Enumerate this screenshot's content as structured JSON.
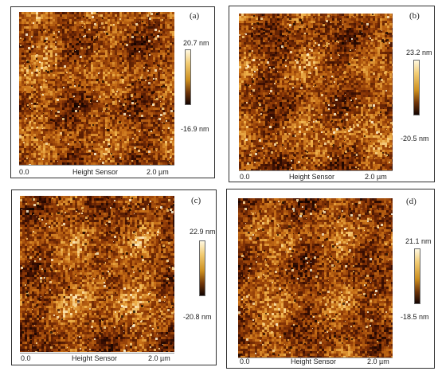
{
  "panels": [
    {
      "label": "(a)",
      "scale_max": "20.7 nm",
      "scale_min": "-16.9 nm",
      "axis_start": "0.0",
      "axis_title": "Height Sensor",
      "axis_end": "2.0 µm"
    },
    {
      "label": "(b)",
      "scale_max": "23.2 nm",
      "scale_min": "-20.5 nm",
      "axis_start": "0.0",
      "axis_title": "Height Sensor",
      "axis_end": "2.0 µm"
    },
    {
      "label": "(c)",
      "scale_max": "22.9 nm",
      "scale_min": "-20.8 nm",
      "axis_start": "0.0",
      "axis_title": "Height Sensor",
      "axis_end": "2.0 µm"
    },
    {
      "label": "(d)",
      "scale_max": "21.1 nm",
      "scale_min": "-18.5 nm",
      "axis_start": "0.0",
      "axis_title": "Height Sensor",
      "axis_end": "2.0 µm"
    }
  ],
  "colors": {
    "afm_dark": "#180300",
    "afm_mid": "#b85b0b",
    "afm_light": "#fff0b7"
  }
}
